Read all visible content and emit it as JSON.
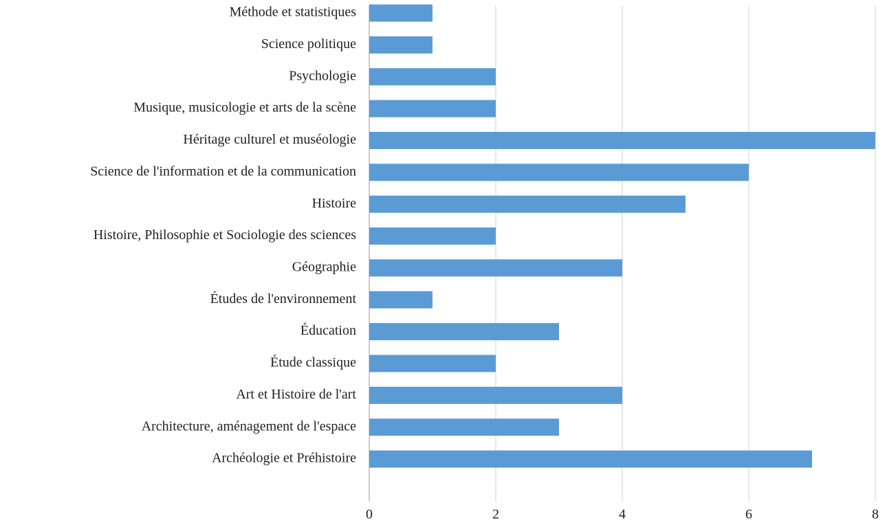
{
  "chart_data": {
    "type": "hbar",
    "categories": [
      "Méthode et statistiques",
      "Science politique",
      "Psychologie",
      "Musique, musicologie et arts de la scène",
      "Héritage culturel et muséologie",
      "Science de l'information et de la communication",
      "Histoire",
      "Histoire, Philosophie et Sociologie des sciences",
      "Géographie",
      "Études de l'environnement",
      "Éducation",
      "Étude classique",
      "Art et Histoire de l'art",
      "Architecture, aménagement de l'espace",
      "Archéologie et Préhistoire"
    ],
    "values": [
      1,
      1,
      2,
      2,
      8,
      6,
      5,
      2,
      4,
      1,
      3,
      2,
      4,
      3,
      7
    ],
    "color": "#5b9bd5",
    "xlim": [
      0,
      8
    ],
    "xticks": [
      0,
      2,
      4,
      6,
      8
    ],
    "grid": true
  }
}
